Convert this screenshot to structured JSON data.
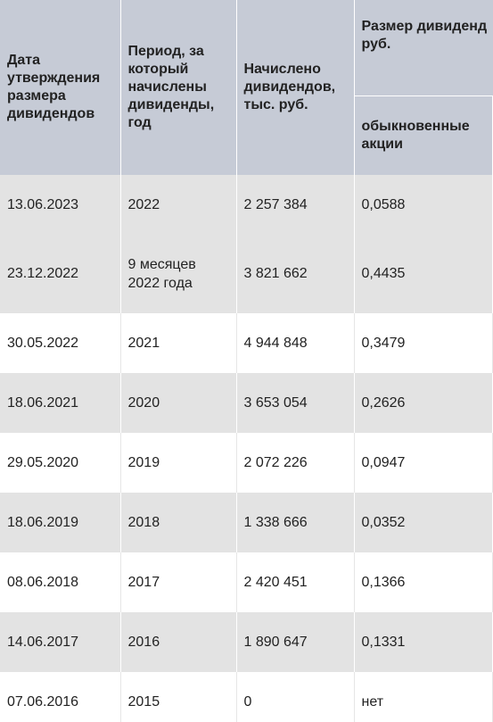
{
  "table": {
    "headers": {
      "date": "Дата утверждения размера дивидендов",
      "period": "Период, за который начислены дивиденды, год",
      "accrued": "Начислено дивидендов, тыс. руб.",
      "size_group": "Размер дивидендов, руб.",
      "size_group_visible": "Размер дивиденд",
      "size_group_line2": "руб.",
      "ordinary": "обыкновенные акции"
    },
    "rows": [
      {
        "date": "13.06.2023",
        "period": "2022",
        "accrued": "2 257 384",
        "ordinary": "0,0588"
      },
      {
        "date": "23.12.2022",
        "period": "9 месяцев 2022 года",
        "accrued": "3 821 662",
        "ordinary": "0,4435"
      },
      {
        "date": "30.05.2022",
        "period": "2021",
        "accrued": "4 944 848",
        "ordinary": "0,3479"
      },
      {
        "date": "18.06.2021",
        "period": "2020",
        "accrued": "3 653 054",
        "ordinary": "0,2626"
      },
      {
        "date": "29.05.2020",
        "period": "2019",
        "accrued": "2 072 226",
        "ordinary": "0,0947"
      },
      {
        "date": "18.06.2019",
        "period": "2018",
        "accrued": "1 338 666",
        "ordinary": "0,0352"
      },
      {
        "date": "08.06.2018",
        "period": "2017",
        "accrued": "2 420 451",
        "ordinary": "0,1366"
      },
      {
        "date": "14.06.2017",
        "period": "2016",
        "accrued": "1 890 647",
        "ordinary": "0,1331"
      },
      {
        "date": "07.06.2016",
        "period": "2015",
        "accrued": "0",
        "ordinary": "нет"
      }
    ]
  }
}
